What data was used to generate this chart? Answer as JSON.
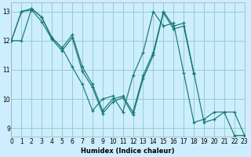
{
  "xlabel": "Humidex (Indice chaleur)",
  "bg_color": "#cceeff",
  "grid_color": "#99cccc",
  "line_color": "#1a7a6e",
  "xlim": [
    0,
    23
  ],
  "ylim": [
    8.7,
    13.3
  ],
  "yticks": [
    9,
    10,
    11,
    12,
    13
  ],
  "xticks": [
    0,
    1,
    2,
    3,
    4,
    5,
    6,
    7,
    8,
    9,
    10,
    11,
    12,
    13,
    14,
    15,
    16,
    17,
    18,
    19,
    20,
    21,
    22,
    23
  ],
  "series": [
    {
      "x": [
        0,
        1,
        2,
        3,
        4,
        5,
        6,
        7,
        8,
        9,
        10,
        11,
        12,
        13,
        14,
        15,
        16,
        17,
        18,
        19,
        20,
        21,
        22,
        23
      ],
      "y": [
        12.0,
        13.0,
        13.1,
        12.8,
        12.1,
        11.75,
        12.2,
        11.1,
        10.5,
        9.6,
        10.0,
        10.1,
        9.55,
        10.8,
        11.6,
        13.0,
        12.5,
        12.6,
        10.9,
        9.2,
        9.3,
        9.55,
        9.55,
        8.75
      ]
    },
    {
      "x": [
        0,
        1,
        2,
        3,
        4,
        5,
        6,
        7,
        8,
        9,
        10,
        11,
        12,
        13,
        14,
        15,
        16,
        17,
        18
      ],
      "y": [
        12.0,
        13.0,
        13.05,
        12.65,
        12.05,
        11.65,
        12.1,
        10.95,
        10.4,
        9.5,
        9.9,
        10.05,
        9.45,
        10.7,
        11.5,
        12.95,
        12.4,
        12.5,
        10.85
      ]
    },
    {
      "x": [
        0,
        1,
        2,
        3,
        4,
        5,
        6,
        7,
        8,
        9,
        10,
        11,
        12,
        13,
        14,
        15,
        16,
        17,
        18,
        19,
        20,
        21,
        22,
        23
      ],
      "y": [
        12.0,
        12.0,
        13.1,
        12.8,
        12.1,
        11.75,
        11.1,
        10.5,
        9.6,
        10.0,
        10.1,
        9.55,
        10.8,
        11.6,
        13.0,
        12.5,
        12.6,
        10.9,
        9.2,
        9.3,
        9.55,
        9.55,
        8.75,
        8.75
      ]
    }
  ]
}
